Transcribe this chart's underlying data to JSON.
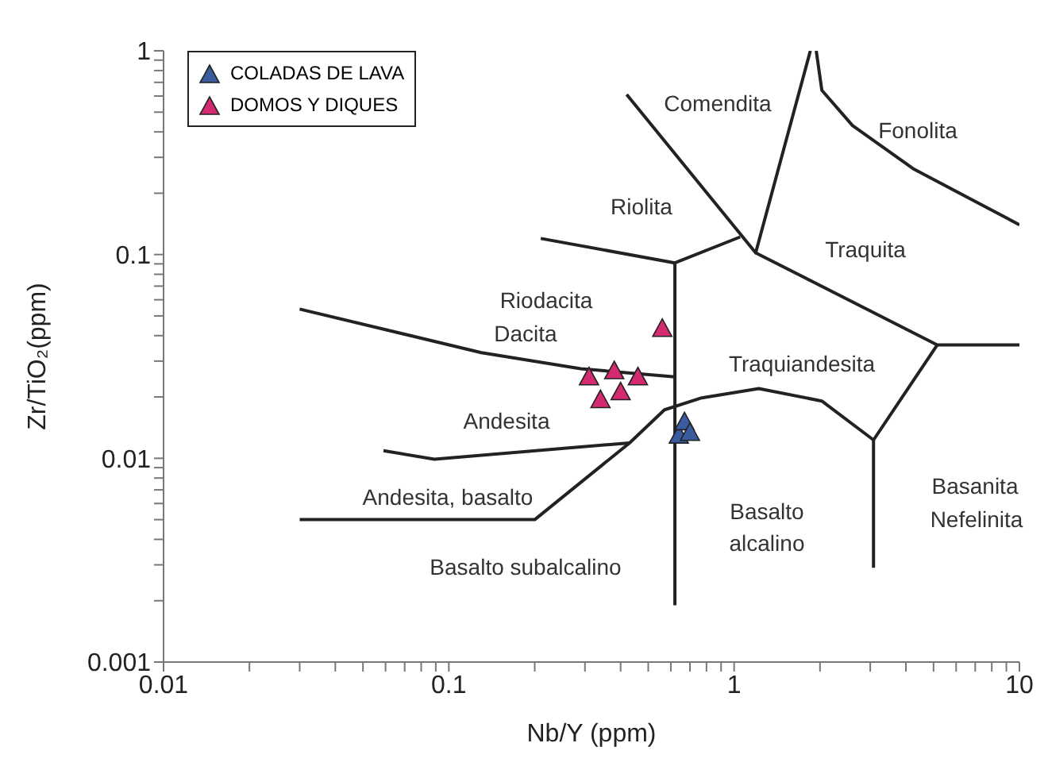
{
  "chart_data": {
    "type": "scatter",
    "xlabel": "Nb/Y (ppm)",
    "ylabel": "Zr/TiO₂(ppm)",
    "log": "xy",
    "grid": false,
    "legend": "top left",
    "marker": "triangle",
    "xlim": [
      0.01,
      10
    ],
    "ylim": [
      0.001,
      1
    ],
    "xticks": [
      0.01,
      {
        "value": 0.02,
        "label": null
      },
      {
        "value": 0.03,
        "label": null
      },
      {
        "value": 0.04,
        "label": null
      },
      {
        "value": 0.05,
        "label": null
      },
      {
        "value": 0.06,
        "label": null
      },
      {
        "value": 0.07,
        "label": null
      },
      {
        "value": 0.08,
        "label": null
      },
      {
        "value": 0.09,
        "label": null
      },
      0.1,
      {
        "value": 0.2,
        "label": null
      },
      {
        "value": 0.3,
        "label": null
      },
      {
        "value": 0.4,
        "label": null
      },
      {
        "value": 0.5,
        "label": null
      },
      {
        "value": 0.6,
        "label": null
      },
      {
        "value": 0.7,
        "label": null
      },
      {
        "value": 0.8,
        "label": null
      },
      {
        "value": 0.9,
        "label": null
      },
      1,
      {
        "value": 2,
        "label": null
      },
      {
        "value": 3,
        "label": null
      },
      {
        "value": 4,
        "label": null
      },
      {
        "value": 5,
        "label": null
      },
      {
        "value": 6,
        "label": null
      },
      {
        "value": 7,
        "label": null
      },
      {
        "value": 8,
        "label": null
      },
      {
        "value": 9,
        "label": null
      },
      10
    ],
    "yticks": [
      0.001,
      {
        "value": 0.002,
        "label": null
      },
      {
        "value": 0.003,
        "label": null
      },
      {
        "value": 0.004,
        "label": null
      },
      {
        "value": 0.005,
        "label": null
      },
      {
        "value": 0.006,
        "label": null
      },
      {
        "value": 0.007,
        "label": null
      },
      {
        "value": 0.008,
        "label": null
      },
      {
        "value": 0.009,
        "label": null
      },
      0.01,
      {
        "value": 0.02,
        "label": null
      },
      {
        "value": 0.03,
        "label": null
      },
      {
        "value": 0.04,
        "label": null
      },
      {
        "value": 0.05,
        "label": null
      },
      {
        "value": 0.06,
        "label": null
      },
      {
        "value": 0.07,
        "label": null
      },
      {
        "value": 0.08,
        "label": null
      },
      {
        "value": 0.09,
        "label": null
      },
      0.1,
      {
        "value": 0.2,
        "label": null
      },
      {
        "value": 0.3,
        "label": null
      },
      {
        "value": 0.4,
        "label": null
      },
      {
        "value": 0.5,
        "label": null
      },
      {
        "value": 0.6,
        "label": null
      },
      {
        "value": 0.7,
        "label": null
      },
      {
        "value": 0.8,
        "label": null
      },
      {
        "value": 0.9,
        "label": null
      },
      1
    ],
    "series": [
      {
        "type": "line",
        "color": "#222222",
        "marker": "none",
        "x": [
          0.03,
          0.13,
          0.29,
          0.62
        ],
        "values": [
          0.054,
          0.033,
          0.0275,
          0.0251
        ]
      },
      {
        "type": "line",
        "color": "#222222",
        "marker": "none",
        "x": [
          0.62,
          0.62
        ],
        "values": [
          0.091,
          0.0019
        ]
      },
      {
        "type": "line",
        "color": "#222222",
        "marker": "none",
        "x": [
          0.21,
          0.62,
          1.05
        ],
        "values": [
          0.12,
          0.091,
          0.122
        ]
      },
      {
        "type": "line",
        "color": "#222222",
        "marker": "none",
        "x": [
          0.42,
          1.19,
          1.85
        ],
        "values": [
          0.61,
          0.102,
          1
        ]
      },
      {
        "type": "line",
        "color": "#222222",
        "marker": "none",
        "x": [
          1.94,
          2.03,
          2.6,
          4.24,
          10
        ],
        "values": [
          1,
          0.64,
          0.43,
          0.264,
          0.14
        ]
      },
      {
        "type": "line",
        "color": "#222222",
        "marker": "none",
        "x": [
          1.19,
          5.15,
          10
        ],
        "values": [
          0.102,
          0.036,
          0.036
        ]
      },
      {
        "type": "line",
        "color": "#222222",
        "marker": "none",
        "x": [
          5.15,
          3.08,
          3.08
        ],
        "values": [
          0.036,
          0.0123,
          0.0029
        ]
      },
      {
        "type": "line",
        "color": "#222222",
        "marker": "none",
        "x": [
          0.03,
          0.2,
          0.43,
          0.57,
          0.77,
          1.22,
          2.03,
          3.08
        ],
        "values": [
          0.005,
          0.005,
          0.0119,
          0.0173,
          0.0198,
          0.022,
          0.0191,
          0.0123
        ]
      },
      {
        "type": "line",
        "color": "#222222",
        "marker": "none",
        "x": [
          0.059,
          0.089,
          0.43
        ],
        "values": [
          0.0109,
          0.0099,
          0.0119
        ]
      },
      {
        "name": "COLADAS DE LAVA",
        "color": "#3a5c9e",
        "x": [
          0.64,
          0.67,
          0.7
        ],
        "values": [
          0.013,
          0.0151,
          0.0134
        ]
      },
      {
        "name": "DOMOS Y DIQUES",
        "color": "#d42a72",
        "x": [
          0.31,
          0.38,
          0.46,
          0.34,
          0.4,
          0.56
        ],
        "values": [
          0.0251,
          0.0269,
          0.0251,
          0.0194,
          0.0212,
          0.0434
        ]
      }
    ],
    "annotations": [
      "Comendita",
      "Fonolita",
      "Riolita",
      "Traquita",
      "Riodacita",
      "Dacita",
      "Traquiandesita",
      "Andesita",
      "Andesita, basalto",
      "Basalto subalcalino",
      "Basalto",
      "alcalino",
      "Basanita",
      "Nefelinita"
    ]
  }
}
